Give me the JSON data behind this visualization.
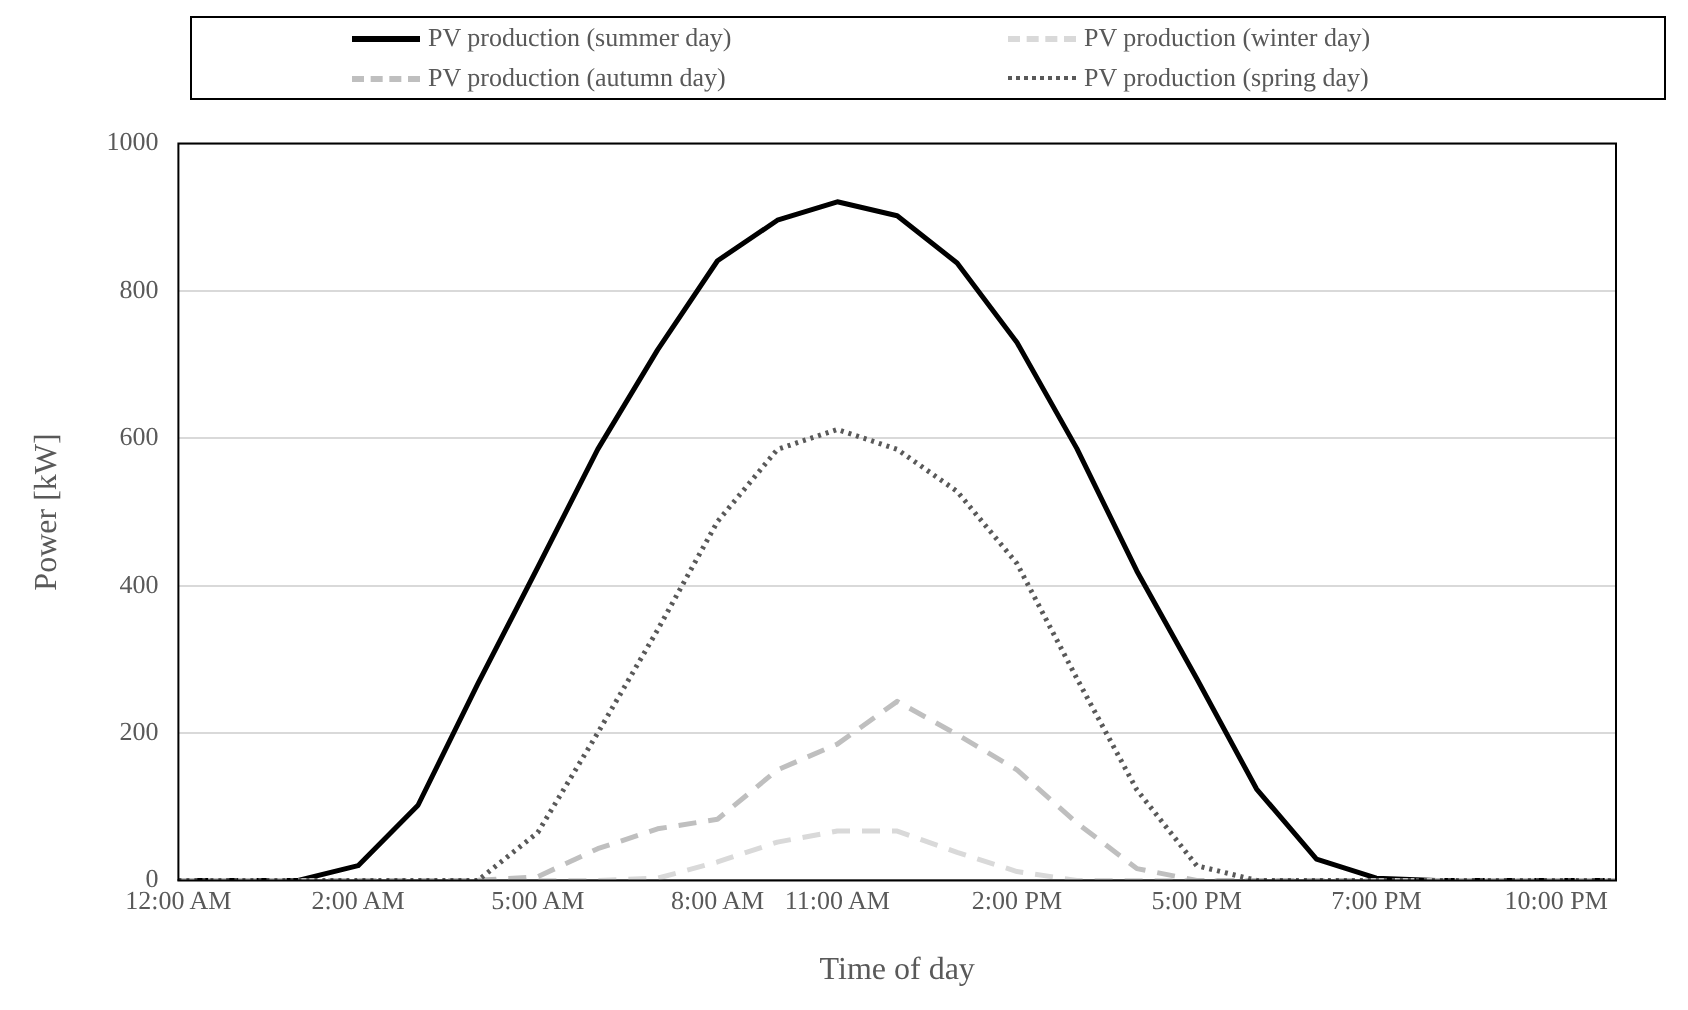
{
  "chart_data": {
    "type": "line",
    "xlabel": "Time of day",
    "ylabel": "Power [kW]",
    "categories": [
      "12:00 AM",
      null,
      null,
      "2:00 AM",
      null,
      null,
      "5:00 AM",
      null,
      null,
      "8:00 AM",
      null,
      "11:00 AM",
      null,
      null,
      "2:00 PM",
      null,
      null,
      "5:00 PM",
      null,
      null,
      "7:00 PM",
      null,
      null,
      "10:00 PM",
      null
    ],
    "ylim": [
      0,
      1000
    ],
    "yticks": [
      0,
      200,
      400,
      600,
      800,
      1000
    ],
    "grid": "y",
    "legend": "top",
    "marker": "none",
    "series": [
      {
        "name": "PV production (summer day)",
        "color": "#000000",
        "line_style": "solid",
        "values": [
          0,
          0,
          0,
          20,
          102,
          267,
          425,
          585,
          720,
          841,
          896,
          921,
          902,
          838,
          730,
          586,
          420,
          274,
          124,
          29,
          3,
          0,
          0,
          0,
          0
        ]
      },
      {
        "name": "PV production (winter day)",
        "color": "#d9d9d9",
        "line_style": "dashed",
        "values": [
          0,
          0,
          0,
          0,
          0,
          0,
          0,
          0,
          3,
          25,
          52,
          67,
          67,
          38,
          12,
          0,
          0,
          0,
          0,
          0,
          0,
          0,
          0,
          0,
          0
        ]
      },
      {
        "name": "PV production (autumn day)",
        "color": "#bfbfbf",
        "line_style": "dashed",
        "values": [
          0,
          0,
          0,
          0,
          0,
          0,
          5,
          43,
          70,
          83,
          150,
          185,
          243,
          198,
          150,
          78,
          16,
          0,
          0,
          0,
          0,
          0,
          0,
          0,
          0
        ]
      },
      {
        "name": "PV production (spring day)",
        "color": "#595959",
        "line_style": "dotted",
        "values": [
          0,
          0,
          0,
          0,
          0,
          0,
          65,
          200,
          340,
          487,
          585,
          612,
          585,
          528,
          430,
          274,
          123,
          20,
          0,
          0,
          0,
          0,
          0,
          0,
          0
        ]
      }
    ]
  }
}
